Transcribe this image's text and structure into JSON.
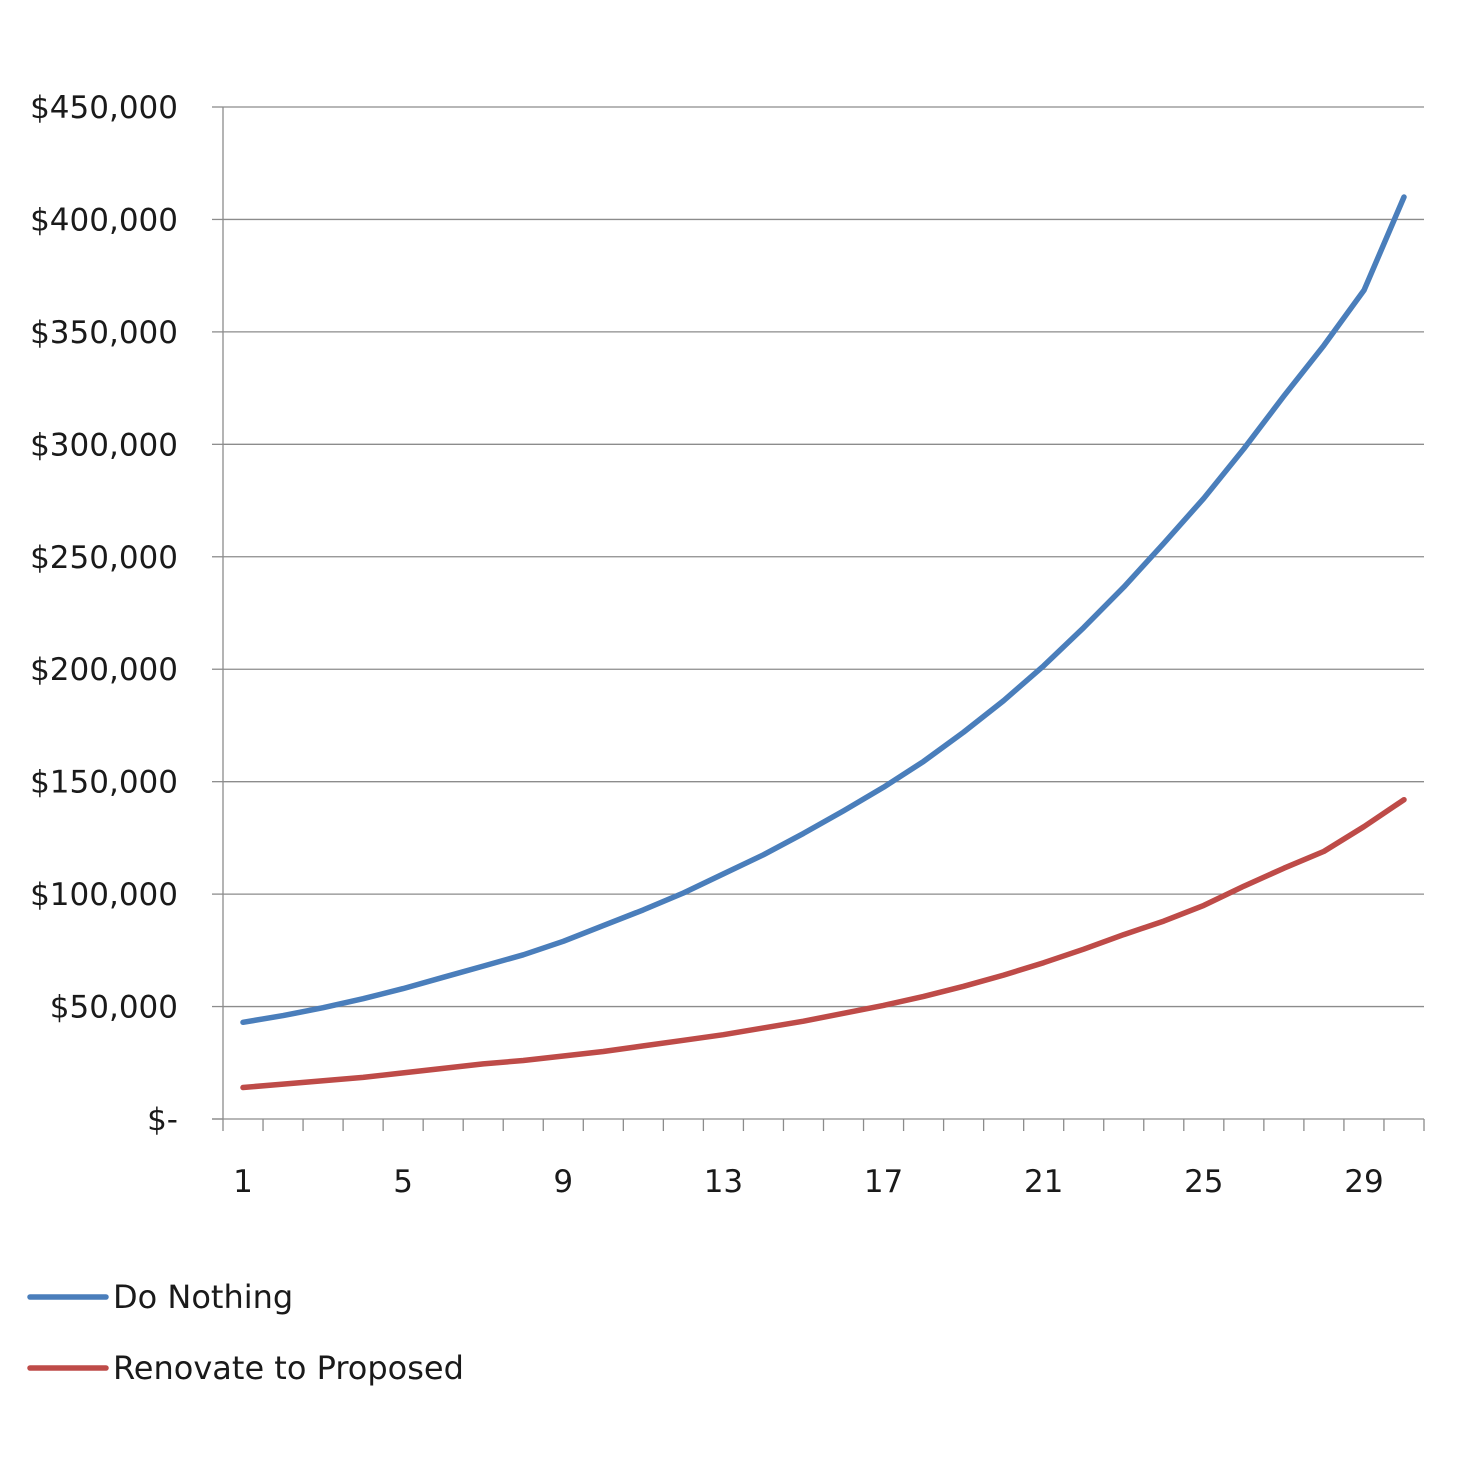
{
  "chart_data": {
    "type": "line",
    "title": "",
    "xlabel": "",
    "ylabel": "",
    "x": [
      1,
      2,
      3,
      4,
      5,
      6,
      7,
      8,
      9,
      10,
      11,
      12,
      13,
      14,
      15,
      16,
      17,
      18,
      19,
      20,
      21,
      22,
      23,
      24,
      25,
      26,
      27,
      28,
      29,
      30
    ],
    "x_tick_labels": [
      "1",
      "5",
      "9",
      "13",
      "17",
      "21",
      "25",
      "29"
    ],
    "x_tick_values": [
      1,
      5,
      9,
      13,
      17,
      21,
      25,
      29
    ],
    "ylim": [
      0,
      450000
    ],
    "y_ticks": [
      0,
      50000,
      100000,
      150000,
      200000,
      250000,
      300000,
      350000,
      400000,
      450000
    ],
    "y_tick_labels": [
      "$-",
      "$50,000",
      "$100,000",
      "$150,000",
      "$200,000",
      "$250,000",
      "$300,000",
      "$350,000",
      "$400,000",
      "$450,000"
    ],
    "grid": "horizontal",
    "legend_position": "bottom-left",
    "series": [
      {
        "name": "Do Nothing",
        "color": "#4a7ebb",
        "values": [
          43000,
          46000,
          49500,
          53500,
          58000,
          63000,
          68000,
          73000,
          79000,
          86000,
          93000,
          100500,
          109000,
          117500,
          127000,
          137000,
          147500,
          159000,
          172000,
          186000,
          201500,
          218500,
          236500,
          256000,
          276000,
          298000,
          321500,
          344000,
          368500,
          410000
        ]
      },
      {
        "name": "Renovate to Proposed",
        "color": "#be4b48",
        "values": [
          14000,
          15500,
          17000,
          18500,
          20500,
          22500,
          24500,
          26000,
          28000,
          30000,
          32500,
          35000,
          37500,
          40500,
          43500,
          47000,
          50500,
          54500,
          59000,
          64000,
          69500,
          75500,
          82000,
          88000,
          95000,
          103500,
          111500,
          119000,
          130000,
          142000
        ]
      }
    ]
  }
}
